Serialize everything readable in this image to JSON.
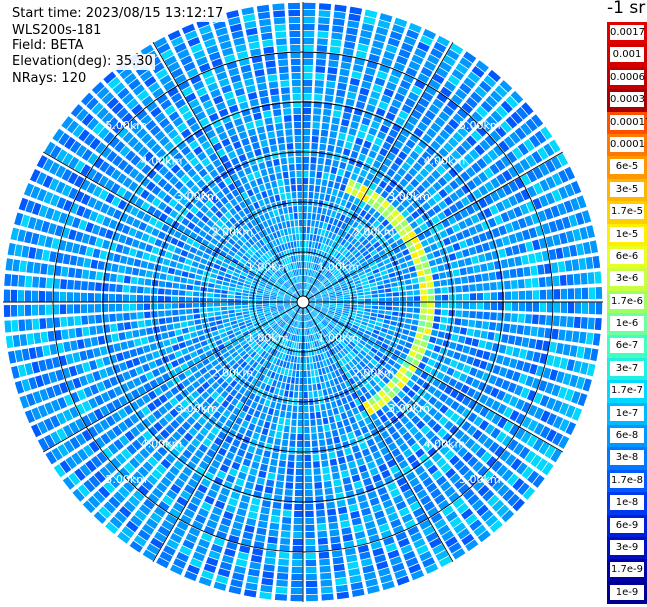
{
  "info": {
    "start_time": "Start time: 2023/08/15 13:12:17",
    "instrument": "WLS200s-181",
    "field": "Field: BETA",
    "elevation": "Elevation(deg): 35.30",
    "nrays": "NRays: 120"
  },
  "colorbar": {
    "unit_label": "-1 sr",
    "labels": [
      "0.0017",
      "0.001",
      "0.0006",
      "0.0003",
      "0.00017",
      "0.0001",
      "6e-5",
      "3e-5",
      "1.7e-5",
      "1e-5",
      "6e-6",
      "3e-6",
      "1.7e-6",
      "1e-6",
      "6e-7",
      "3e-7",
      "1.7e-7",
      "1e-7",
      "6e-8",
      "3e-8",
      "1.7e-8",
      "1e-8",
      "6e-9",
      "3e-9",
      "1.7e-9",
      "1e-9"
    ],
    "colors": [
      "#e00000",
      "#d40000",
      "#c00000",
      "#a80000",
      "#ff5000",
      "#ff7800",
      "#ff9800",
      "#ffb400",
      "#ffd000",
      "#ffee00",
      "#e8ff20",
      "#c8ff40",
      "#a0ff60",
      "#70ffa0",
      "#40ffc0",
      "#20f0e0",
      "#00d8ff",
      "#00b8ff",
      "#0098ff",
      "#0078ff",
      "#0058ff",
      "#0038f0",
      "#0020d8",
      "#0010c0",
      "#0000a8",
      "#000090"
    ]
  },
  "chart_data": {
    "type": "ppi-polar-heatmap",
    "field": "BETA",
    "nrays": 120,
    "range_unit": "km",
    "range_rings_km": [
      1,
      2,
      3,
      4,
      5
    ],
    "ring_labels": [
      "1.00km",
      "2.00km",
      "3.00km",
      "4.00km",
      "5.00km"
    ],
    "max_range_km": 6.0,
    "radial_lines_deg": [
      0,
      30,
      60,
      90,
      120,
      150,
      180,
      210,
      240,
      270,
      300,
      330
    ],
    "background_range": [
      "3e-8",
      "1e-7"
    ],
    "feature": {
      "description": "enhanced backscatter arc",
      "range_km": 2.5,
      "azimuth_deg": [
        20,
        150
      ],
      "value_range": [
        "1e-6",
        "1.7e-5"
      ]
    }
  }
}
